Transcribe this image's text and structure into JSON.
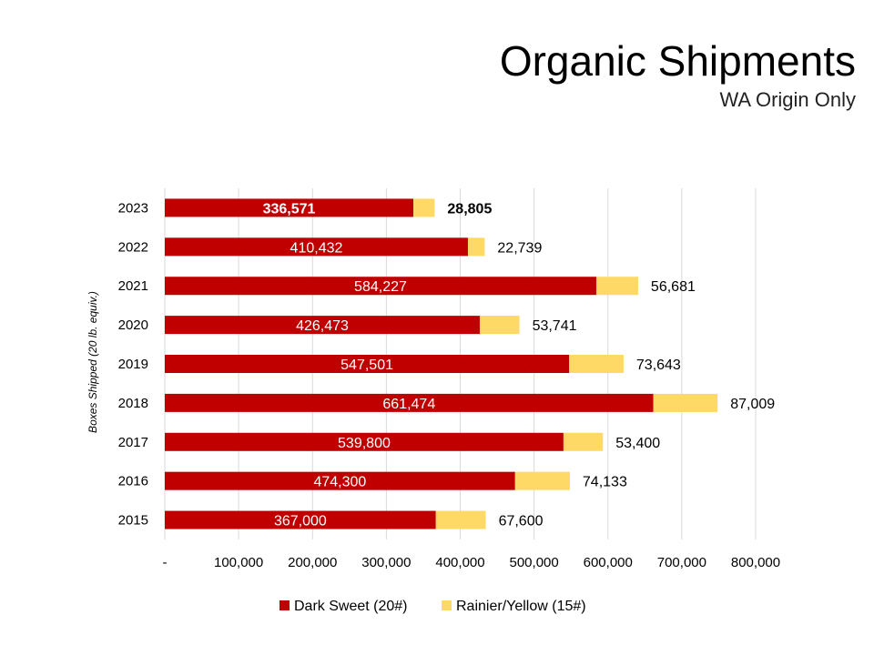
{
  "title": "Organic Shipments",
  "subtitle": "WA Origin Only",
  "colors": {
    "dark_sweet": "#C00000",
    "rainier": "#FFD966",
    "grid": "#D9D9D9"
  },
  "chart_data": {
    "type": "bar",
    "orientation": "horizontal",
    "stacked": true,
    "title": "Organic Shipments",
    "subtitle": "WA Origin Only",
    "ylabel": "Boxes Shipped (20 lb. equiv.)",
    "xlabel": "",
    "categories": [
      "2023",
      "2022",
      "2021",
      "2020",
      "2019",
      "2018",
      "2017",
      "2016",
      "2015"
    ],
    "series": [
      {
        "name": "Dark Sweet (20#)",
        "color": "#C00000",
        "values": [
          336571,
          410432,
          584227,
          426473,
          547501,
          661474,
          539800,
          474300,
          367000
        ]
      },
      {
        "name": "Rainier/Yellow (15#)",
        "color": "#FFD966",
        "values": [
          28805,
          22739,
          56681,
          53741,
          73643,
          87009,
          53400,
          74133,
          67600
        ]
      }
    ],
    "data_labels": {
      "dark_sweet": [
        "336,571",
        "410,432",
        "584,227",
        "426,473",
        "547,501",
        "661,474",
        "539,800",
        "474,300",
        "367,000"
      ],
      "rainier": [
        "28,805",
        "22,739",
        "56,681",
        "53,741",
        "73,643",
        "87,009",
        "53,400",
        "74,133",
        "67,600"
      ]
    },
    "bold_categories": [
      "2023"
    ],
    "xlim": [
      0,
      800000
    ],
    "xticks": [
      0,
      100000,
      200000,
      300000,
      400000,
      500000,
      600000,
      700000,
      800000
    ],
    "xtick_labels": [
      "-",
      "100,000",
      "200,000",
      "300,000",
      "400,000",
      "500,000",
      "600,000",
      "700,000",
      "800,000"
    ],
    "grid": true,
    "legend_position": "bottom"
  }
}
